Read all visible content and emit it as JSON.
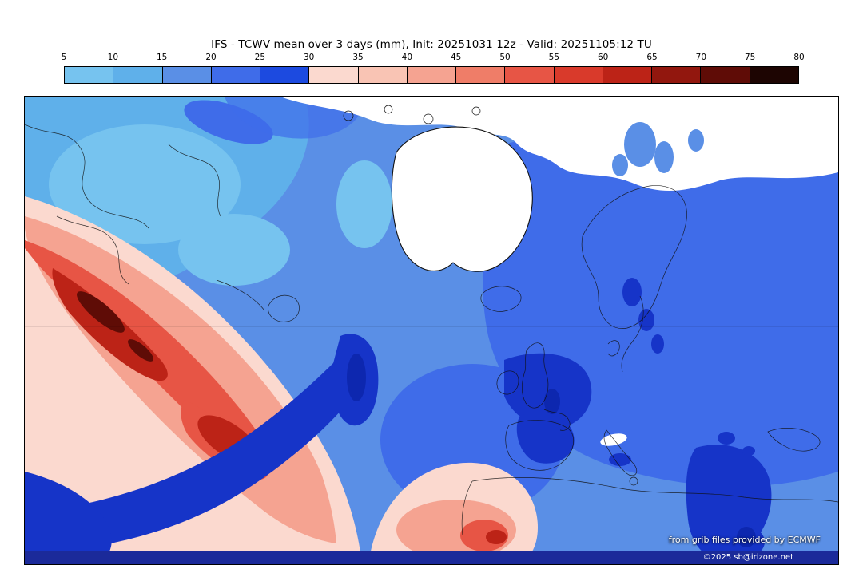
{
  "title": "IFS - TCWV mean over 3 days (mm), Init: 20251031 12z - Valid: 20251105:12 TU",
  "colorbar": {
    "unit": "mm",
    "ticks": [
      "5",
      "10",
      "15",
      "20",
      "25",
      "30",
      "35",
      "40",
      "45",
      "50",
      "55",
      "60",
      "65",
      "70",
      "75",
      "80"
    ],
    "segments": [
      {
        "from": 5,
        "to": 10,
        "color": "#76c3ef"
      },
      {
        "from": 10,
        "to": 15,
        "color": "#5fb0ea"
      },
      {
        "from": 15,
        "to": 20,
        "color": "#5a8fe6"
      },
      {
        "from": 20,
        "to": 25,
        "color": "#3f6ce9"
      },
      {
        "from": 25,
        "to": 30,
        "color": "#1c4ae0"
      },
      {
        "from": 30,
        "to": 35,
        "color": "#fbd9cf"
      },
      {
        "from": 35,
        "to": 40,
        "color": "#f9c4b4"
      },
      {
        "from": 40,
        "to": 45,
        "color": "#f5a391"
      },
      {
        "from": 45,
        "to": 50,
        "color": "#ef7d68"
      },
      {
        "from": 50,
        "to": 55,
        "color": "#e75545"
      },
      {
        "from": 55,
        "to": 60,
        "color": "#d93a2b"
      },
      {
        "from": 60,
        "to": 65,
        "color": "#bc2317"
      },
      {
        "from": 65,
        "to": 70,
        "color": "#92170e"
      },
      {
        "from": 70,
        "to": 75,
        "color": "#5f0c06"
      },
      {
        "from": 75,
        "to": 80,
        "color": "#1d0502"
      }
    ]
  },
  "map": {
    "attribution": "from grib files provided by ECMWF",
    "copyright": "©2025 sb@irizone.net"
  },
  "chart_data": {
    "type": "heatmap",
    "title": "IFS - TCWV mean over 3 days (mm), Init: 20251031 12z - Valid: 20251105:12 TU",
    "model": "IFS",
    "variable": "TCWV mean over 3 days",
    "units": "mm",
    "init": "20251031 12z",
    "valid": "20251105:12 TU",
    "scale_ticks": [
      5,
      10,
      15,
      20,
      25,
      30,
      35,
      40,
      45,
      50,
      55,
      60,
      65,
      70,
      75,
      80
    ],
    "scale_colors": [
      "#76c3ef",
      "#5fb0ea",
      "#5a8fe6",
      "#3f6ce9",
      "#1c4ae0",
      "#fbd9cf",
      "#f9c4b4",
      "#f5a391",
      "#ef7d68",
      "#e75545",
      "#d93a2b",
      "#bc2317",
      "#92170e",
      "#5f0c06",
      "#1d0502"
    ],
    "legend_position": "top"
  }
}
